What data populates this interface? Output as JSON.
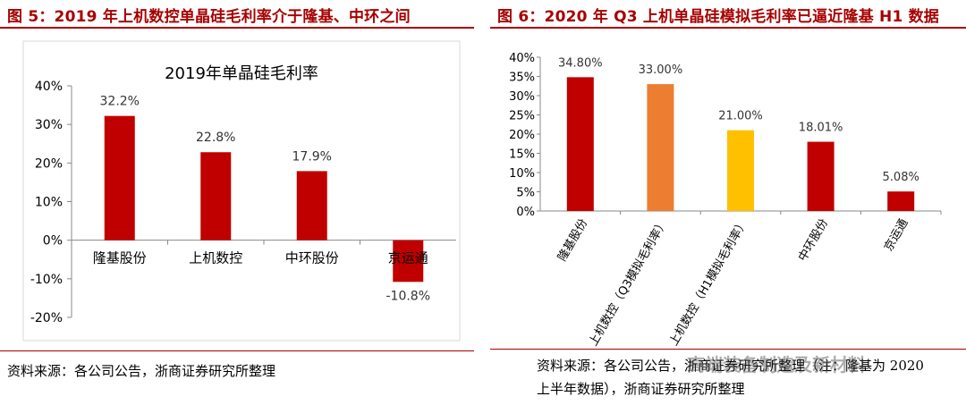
{
  "figure5": {
    "title": "图 5：2019 年上机数控单晶硅毛利率介于隆基、中环之间",
    "source": "资料来源：各公司公告，浙商证券研究所整理"
  },
  "figure6": {
    "title": "图 6：2020 年 Q3 上机单晶硅模拟毛利率已逼近隆基 H1 数据",
    "source_line1": "资料来源：各公司公告，浙商证券研究所整理（注：隆基为 2020",
    "source_line2": "上半年数据），浙商证券研究所整理"
  },
  "watermark": {
    "text": "高端装备制造及新材料"
  },
  "colors": {
    "accent": "#a80000",
    "red_bar": "#c00000",
    "orange_bar": "#ed7d31",
    "yellow_bar": "#ffc000"
  },
  "chart_data": [
    {
      "type": "bar",
      "title": "2019年单晶硅毛利率",
      "categories": [
        "隆基股份",
        "上机数控",
        "中环股份",
        "京运通"
      ],
      "values": [
        32.2,
        22.8,
        17.9,
        -10.8
      ],
      "value_labels": [
        "32.2%",
        "22.8%",
        "17.9%",
        "-10.8%"
      ],
      "ylim": [
        -20,
        40
      ],
      "yticks": [
        40,
        30,
        20,
        10,
        0,
        -10,
        -20
      ],
      "ytick_labels": [
        "40%",
        "30%",
        "20%",
        "10%",
        "0%",
        "-10%",
        "-20%"
      ],
      "bar_color": "#c00000",
      "xlabel": "",
      "ylabel": "",
      "grid": false
    },
    {
      "type": "bar",
      "title": "",
      "categories": [
        "隆基股份",
        "上机数控（Q3模拟毛利率）",
        "上机数控（H1模拟毛利率）",
        "中环股份",
        "京运通"
      ],
      "values": [
        34.8,
        33.0,
        21.0,
        18.01,
        5.08
      ],
      "value_labels": [
        "34.80%",
        "33.00%",
        "21.00%",
        "18.01%",
        "5.08%"
      ],
      "bar_colors": [
        "#c00000",
        "#ed7d31",
        "#ffc000",
        "#c00000",
        "#c00000"
      ],
      "ylim": [
        0,
        40
      ],
      "yticks": [
        40,
        35,
        30,
        25,
        20,
        15,
        10,
        5,
        0
      ],
      "ytick_labels": [
        "40%",
        "35%",
        "30%",
        "25%",
        "20%",
        "15%",
        "10%",
        "5%",
        "0%"
      ],
      "xlabel": "",
      "ylabel": "",
      "grid": false
    }
  ]
}
